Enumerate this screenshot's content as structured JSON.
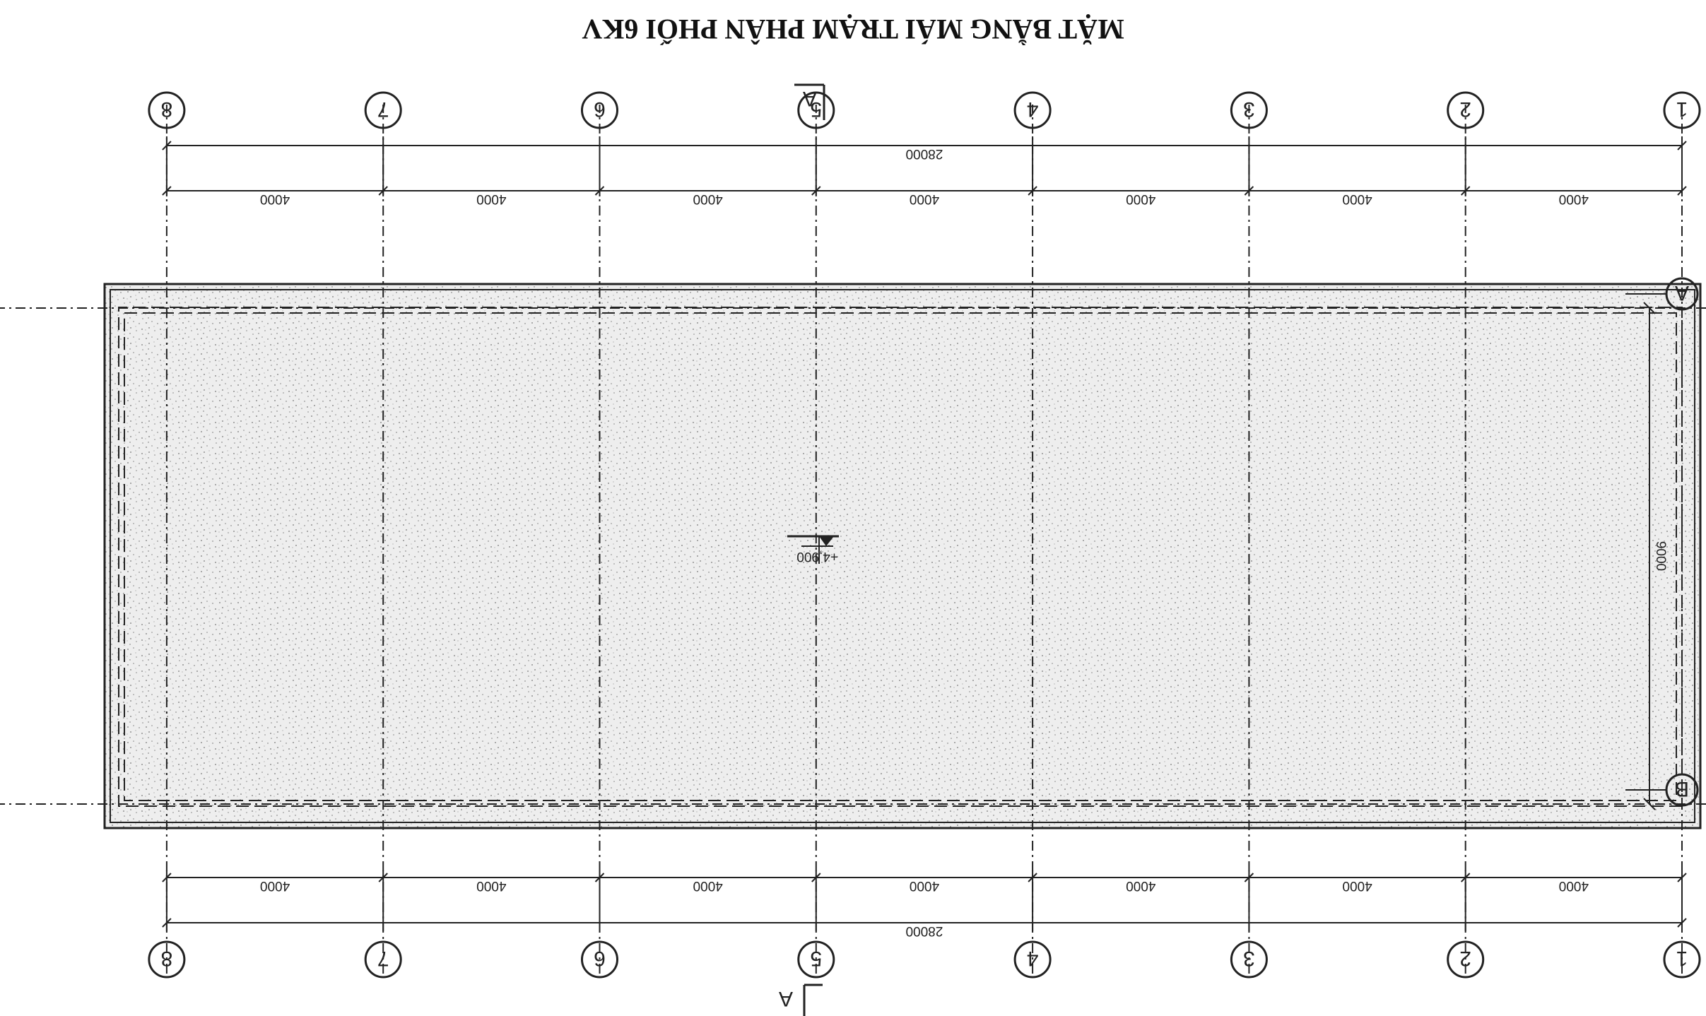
{
  "title": "MẶT BẰNG MÁI TRẠM PHÂN PHỐI 6KV",
  "grid_columns": [
    "1",
    "2",
    "3",
    "4",
    "5",
    "6",
    "7",
    "8"
  ],
  "grid_rows": [
    "A",
    "B"
  ],
  "bay_dimensions": [
    "4000",
    "4000",
    "4000",
    "4000",
    "4000",
    "4000",
    "4000"
  ],
  "overall_dimension": "28000",
  "depth_dimension": "9000",
  "elevation_label": "+4,900",
  "section_marker": "A",
  "colors": {
    "line": "#222222",
    "fill": "#eeeeee",
    "speckle": "#777777"
  }
}
